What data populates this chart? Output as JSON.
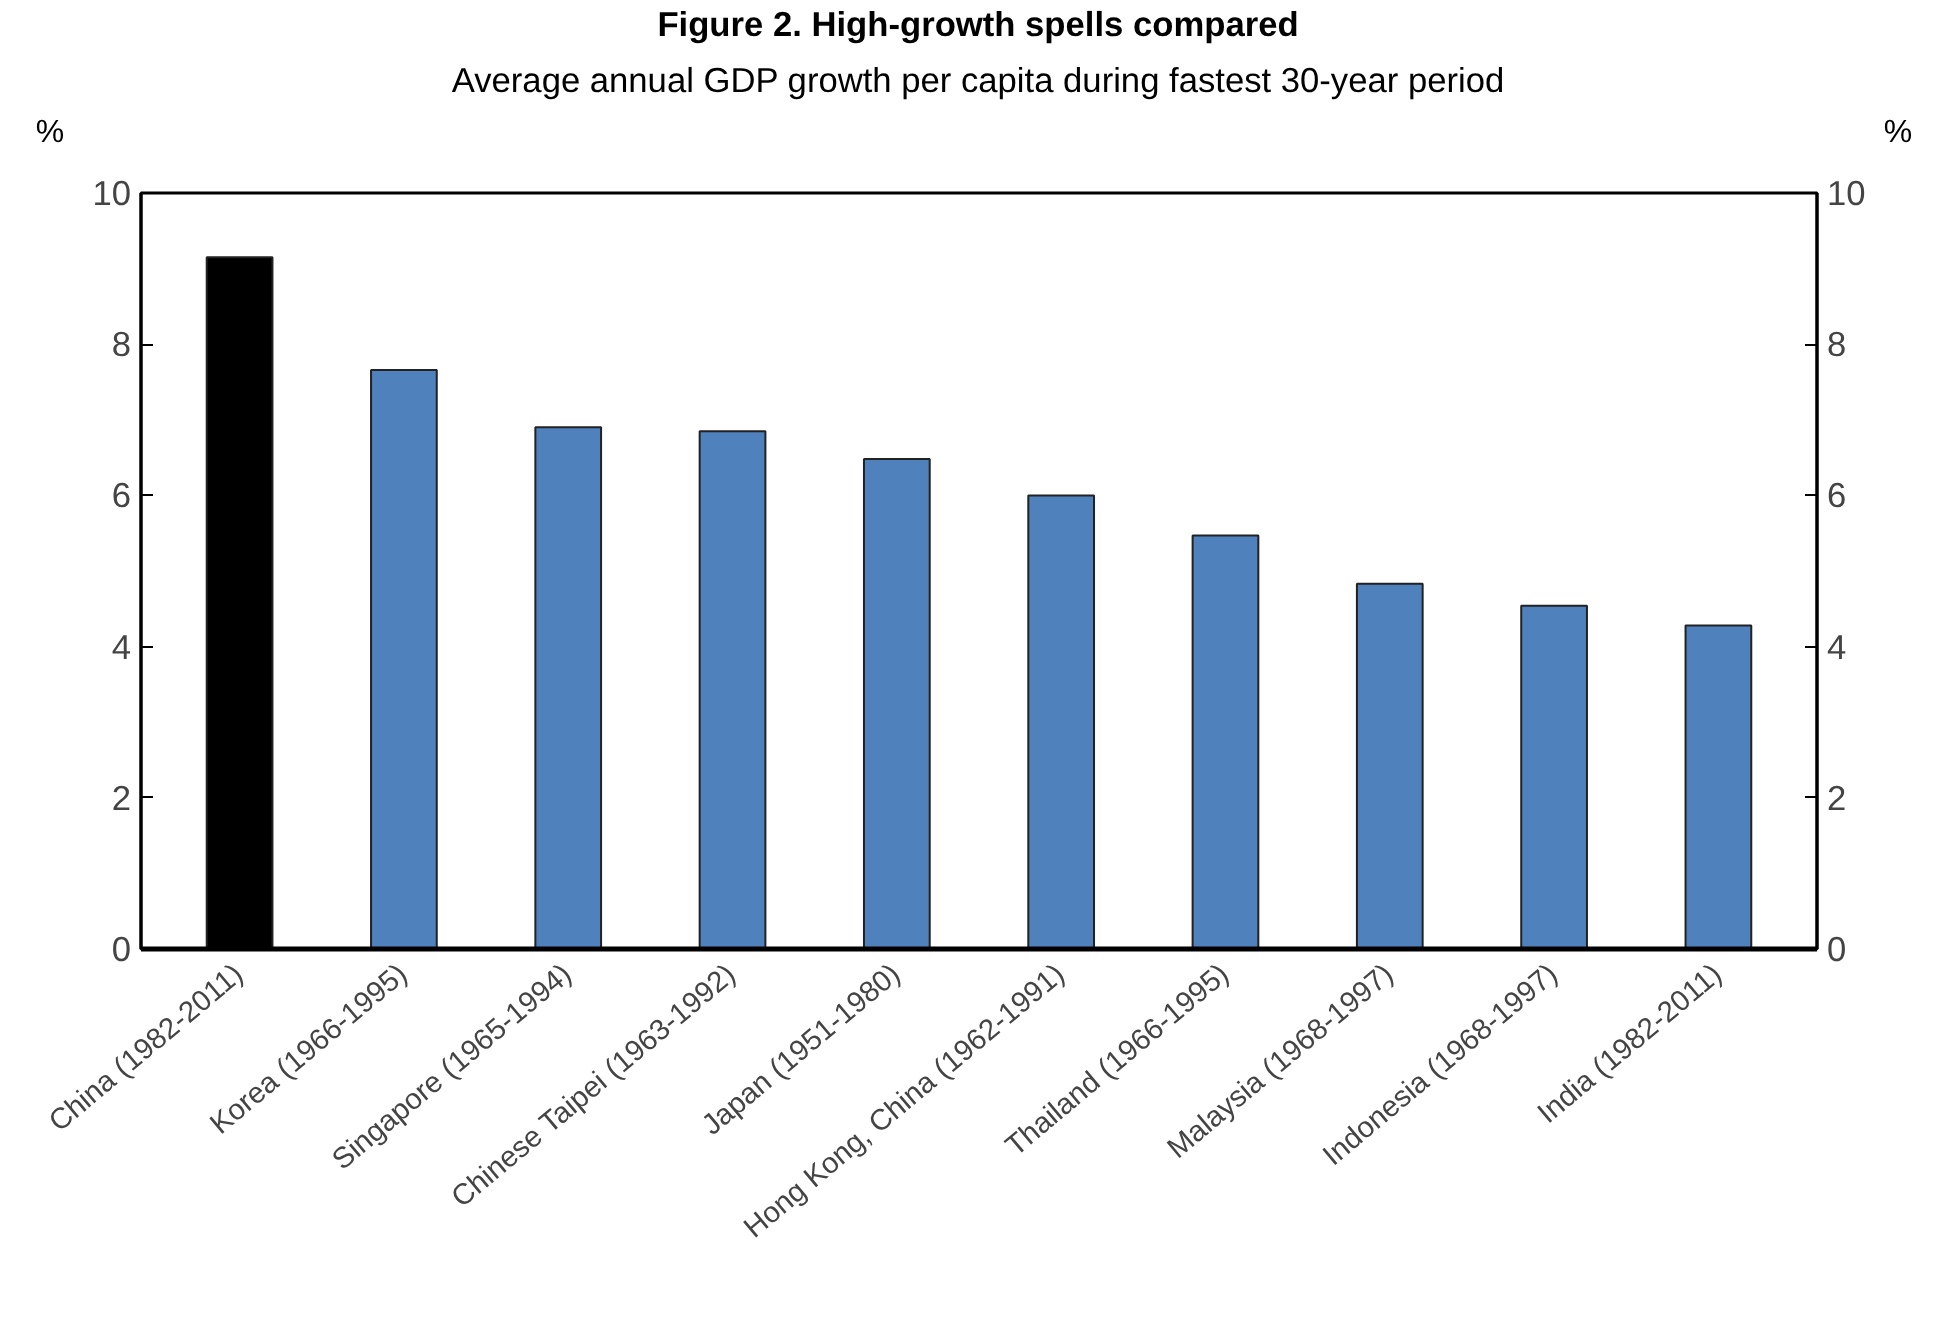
{
  "chart_data": {
    "type": "bar",
    "title": "Figure 2. High-growth spells compared",
    "subtitle": "Average annual GDP growth per capita during fastest 30-year period",
    "ylabel": "%",
    "y2label": "%",
    "categories": [
      "China (1982-2011)",
      "Korea (1966-1995)",
      "Singapore (1965-1994)",
      "Chinese Taipei (1963-1992)",
      "Japan (1951-1980)",
      "Hong Kong, China (1962-1991)",
      "Thailand (1966-1995)",
      "Malaysia (1968-1997)",
      "Indonesia (1968-1997)",
      "India (1982-2011)"
    ],
    "values": [
      9.15,
      7.66,
      6.9,
      6.85,
      6.48,
      6.0,
      5.47,
      4.83,
      4.54,
      4.28
    ],
    "colors": [
      "#000000",
      "#4f81bd",
      "#4f81bd",
      "#4f81bd",
      "#4f81bd",
      "#4f81bd",
      "#4f81bd",
      "#4f81bd",
      "#4f81bd",
      "#4f81bd"
    ],
    "ylim": [
      0,
      10
    ],
    "yticks": [
      0,
      2,
      4,
      6,
      8,
      10
    ],
    "y2lim": [
      0,
      10
    ],
    "y2ticks": [
      0,
      2,
      4,
      6,
      8,
      10
    ],
    "grid": false
  }
}
